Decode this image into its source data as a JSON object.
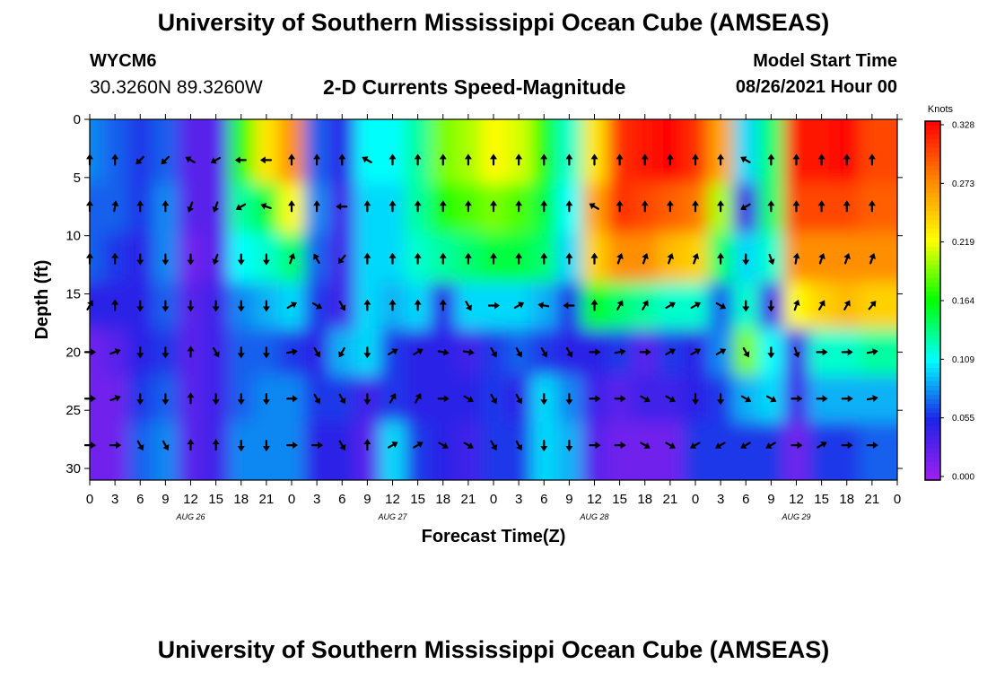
{
  "header": {
    "title": "University of Southern Mississippi Ocean Cube (AMSEAS)",
    "station_id": "WYCM6",
    "station_coords": "30.3260N  89.3260W",
    "subtitle": "2-D Currents Speed-Magnitude",
    "model_start_label": "Model Start Time",
    "model_start_value": "08/26/2021 Hour 00"
  },
  "footer": {
    "title": "University of Southern Mississippi Ocean Cube (AMSEAS)"
  },
  "chart_data": {
    "type": "heatmap",
    "title": "2-D Currents Speed-Magnitude",
    "xlabel": "Forecast Time(Z)",
    "ylabel": "Depth (ft)",
    "x_range_hours": [
      0,
      96
    ],
    "y_range_ft": [
      0,
      31
    ],
    "y_ticks": [
      0,
      5,
      10,
      15,
      20,
      25,
      30
    ],
    "x_tick_labels": [
      "0",
      "3",
      "6",
      "9",
      "12",
      "15",
      "18",
      "21",
      "0",
      "3",
      "6",
      "9",
      "12",
      "15",
      "18",
      "21",
      "0",
      "3",
      "6",
      "9",
      "12",
      "15",
      "18",
      "21",
      "0",
      "3",
      "6",
      "9",
      "12",
      "15",
      "18",
      "21",
      "0"
    ],
    "day_labels": [
      {
        "hour": 12,
        "label": "AUG 26"
      },
      {
        "hour": 36,
        "label": "AUG 27"
      },
      {
        "hour": 60,
        "label": "AUG 28"
      },
      {
        "hour": 84,
        "label": "AUG 29"
      }
    ],
    "colorbar": {
      "unit": "Knots",
      "ticks": [
        "0.000",
        "0.055",
        "0.109",
        "0.164",
        "0.219",
        "0.273",
        "0.328"
      ],
      "min": 0.0,
      "max": 0.328,
      "colors": [
        "#a020f0",
        "#1e22e6",
        "#00ffff",
        "#00ff00",
        "#ffff00",
        "#ff8800",
        "#ff0000"
      ]
    },
    "arrow_depths_ft": [
      3.5,
      7.5,
      12,
      16,
      20,
      24,
      28
    ],
    "arrow_hours": [
      0,
      3,
      6,
      9,
      12,
      15,
      18,
      21,
      24,
      27,
      30,
      33,
      36,
      39,
      42,
      45,
      48,
      51,
      54,
      57,
      60,
      63,
      66,
      69,
      72,
      75,
      78,
      81,
      84,
      87,
      90,
      93
    ],
    "speed_grid_knots": [
      [
        0.08,
        0.07,
        0.06,
        0.07,
        0.03,
        0.03,
        0.17,
        0.23,
        0.27,
        0.07,
        0.05,
        0.11,
        0.11,
        0.13,
        0.19,
        0.2,
        0.22,
        0.21,
        0.17,
        0.12,
        0.23,
        0.31,
        0.32,
        0.33,
        0.31,
        0.26,
        0.1,
        0.14,
        0.32,
        0.32,
        0.33,
        0.3
      ],
      [
        0.07,
        0.07,
        0.06,
        0.08,
        0.03,
        0.03,
        0.13,
        0.15,
        0.22,
        0.08,
        0.04,
        0.1,
        0.1,
        0.13,
        0.17,
        0.18,
        0.19,
        0.18,
        0.15,
        0.11,
        0.26,
        0.31,
        0.3,
        0.29,
        0.28,
        0.2,
        0.04,
        0.14,
        0.3,
        0.3,
        0.3,
        0.29
      ],
      [
        0.07,
        0.06,
        0.05,
        0.08,
        0.02,
        0.03,
        0.11,
        0.12,
        0.14,
        0.07,
        0.04,
        0.1,
        0.1,
        0.12,
        0.13,
        0.14,
        0.15,
        0.15,
        0.14,
        0.1,
        0.24,
        0.27,
        0.27,
        0.25,
        0.24,
        0.14,
        0.1,
        0.12,
        0.27,
        0.27,
        0.27,
        0.27
      ],
      [
        0.05,
        0.05,
        0.05,
        0.07,
        0.03,
        0.04,
        0.08,
        0.09,
        0.1,
        0.06,
        0.04,
        0.1,
        0.09,
        0.1,
        0.05,
        0.1,
        0.1,
        0.1,
        0.09,
        0.06,
        0.16,
        0.14,
        0.13,
        0.12,
        0.12,
        0.07,
        0.12,
        0.04,
        0.22,
        0.24,
        0.25,
        0.24
      ],
      [
        0.02,
        0.03,
        0.05,
        0.06,
        0.03,
        0.04,
        0.07,
        0.07,
        0.06,
        0.05,
        0.09,
        0.1,
        0.06,
        0.05,
        0.05,
        0.04,
        0.06,
        0.07,
        0.06,
        0.05,
        0.05,
        0.06,
        0.03,
        0.06,
        0.05,
        0.08,
        0.19,
        0.11,
        0.04,
        0.12,
        0.12,
        0.13
      ],
      [
        0.02,
        0.02,
        0.06,
        0.07,
        0.03,
        0.04,
        0.07,
        0.08,
        0.08,
        0.06,
        0.06,
        0.04,
        0.06,
        0.05,
        0.05,
        0.05,
        0.06,
        0.05,
        0.1,
        0.08,
        0.04,
        0.03,
        0.04,
        0.04,
        0.05,
        0.06,
        0.09,
        0.1,
        0.04,
        0.09,
        0.09,
        0.09
      ],
      [
        0.02,
        0.02,
        0.07,
        0.08,
        0.03,
        0.04,
        0.08,
        0.08,
        0.08,
        0.05,
        0.05,
        0.03,
        0.1,
        0.06,
        0.05,
        0.04,
        0.06,
        0.06,
        0.1,
        0.09,
        0.03,
        0.02,
        0.02,
        0.02,
        0.06,
        0.06,
        0.06,
        0.06,
        0.02,
        0.06,
        0.06,
        0.07
      ]
    ],
    "direction_grid_deg": [
      [
        0,
        0,
        225,
        225,
        300,
        240,
        270,
        270,
        0,
        0,
        0,
        300,
        0,
        0,
        0,
        0,
        0,
        0,
        0,
        0,
        0,
        0,
        0,
        0,
        0,
        0,
        300,
        0,
        0,
        0,
        0,
        0
      ],
      [
        0,
        10,
        0,
        0,
        200,
        200,
        240,
        290,
        0,
        0,
        270,
        0,
        0,
        0,
        0,
        0,
        0,
        0,
        0,
        0,
        300,
        0,
        0,
        0,
        0,
        0,
        240,
        0,
        0,
        0,
        0,
        0
      ],
      [
        0,
        0,
        180,
        180,
        180,
        200,
        180,
        180,
        20,
        330,
        220,
        0,
        0,
        0,
        0,
        0,
        0,
        0,
        0,
        0,
        0,
        20,
        20,
        20,
        20,
        0,
        180,
        160,
        10,
        20,
        20,
        20
      ],
      [
        30,
        0,
        180,
        180,
        180,
        180,
        180,
        180,
        60,
        120,
        150,
        0,
        0,
        0,
        0,
        150,
        90,
        60,
        280,
        270,
        0,
        30,
        30,
        60,
        60,
        120,
        180,
        180,
        20,
        30,
        30,
        40
      ],
      [
        90,
        70,
        180,
        180,
        0,
        150,
        180,
        180,
        80,
        150,
        210,
        180,
        60,
        60,
        100,
        100,
        150,
        150,
        150,
        150,
        90,
        80,
        90,
        60,
        60,
        60,
        150,
        180,
        160,
        90,
        90,
        80
      ],
      [
        90,
        70,
        180,
        180,
        0,
        180,
        180,
        180,
        90,
        150,
        150,
        180,
        30,
        30,
        90,
        120,
        150,
        150,
        180,
        180,
        90,
        90,
        120,
        120,
        180,
        180,
        120,
        120,
        90,
        90,
        90,
        80
      ],
      [
        90,
        90,
        150,
        150,
        0,
        0,
        180,
        180,
        90,
        90,
        150,
        0,
        60,
        60,
        120,
        120,
        150,
        150,
        180,
        180,
        90,
        90,
        120,
        120,
        240,
        240,
        240,
        240,
        90,
        60,
        90,
        90
      ]
    ]
  }
}
